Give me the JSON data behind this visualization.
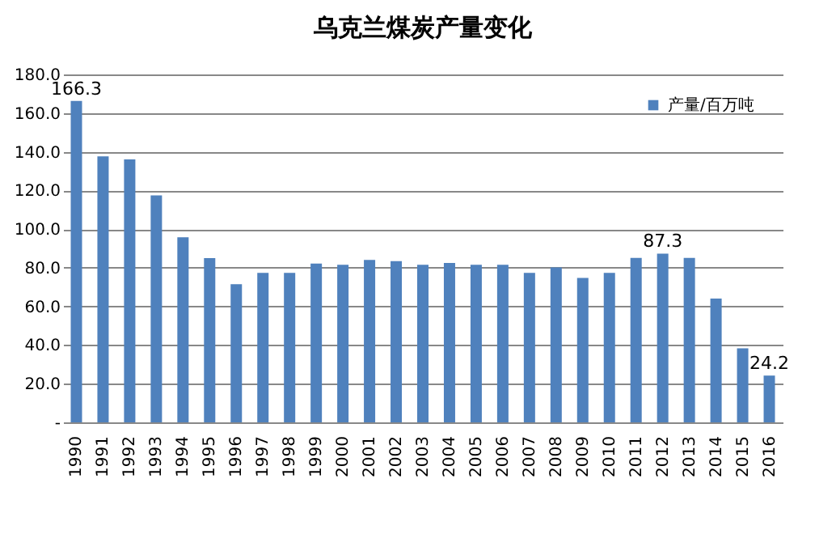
{
  "chart_data": {
    "type": "bar",
    "title": "乌克兰煤炭产量变化",
    "categories": [
      "1990",
      "1991",
      "1992",
      "1993",
      "1994",
      "1995",
      "1996",
      "1997",
      "1998",
      "1999",
      "2000",
      "2001",
      "2002",
      "2003",
      "2004",
      "2005",
      "2006",
      "2007",
      "2008",
      "2009",
      "2010",
      "2011",
      "2012",
      "2013",
      "2014",
      "2015",
      "2016"
    ],
    "series": [
      {
        "name": "产量/百万吨",
        "color": "#4f81bd",
        "values": [
          166.3,
          137.6,
          136,
          117.4,
          95.8,
          85,
          71.5,
          77.3,
          77.3,
          82.2,
          81.5,
          84,
          83.4,
          81.5,
          82.5,
          81.5,
          81.5,
          77.3,
          80.2,
          74.7,
          77.3,
          85.1,
          87.3,
          85.1,
          64,
          38.3,
          24.2
        ],
        "value_labels": [
          "166.3",
          null,
          null,
          null,
          null,
          null,
          null,
          null,
          null,
          null,
          null,
          null,
          null,
          null,
          null,
          null,
          null,
          null,
          null,
          null,
          null,
          null,
          "87.3",
          null,
          null,
          null,
          "24.2"
        ]
      }
    ],
    "ylim": [
      0,
      180
    ],
    "yticks": [
      {
        "value": 0,
        "label": "-"
      },
      {
        "value": 20,
        "label": "20.0"
      },
      {
        "value": 40,
        "label": "40.0"
      },
      {
        "value": 60,
        "label": "60.0"
      },
      {
        "value": 80,
        "label": "80.0"
      },
      {
        "value": 100,
        "label": "100.0"
      },
      {
        "value": 120,
        "label": "120.0"
      },
      {
        "value": 140,
        "label": "140.0"
      },
      {
        "value": 160,
        "label": "160.0"
      },
      {
        "value": 180,
        "label": "180.0"
      }
    ],
    "grid": "y",
    "legend": "top right"
  }
}
